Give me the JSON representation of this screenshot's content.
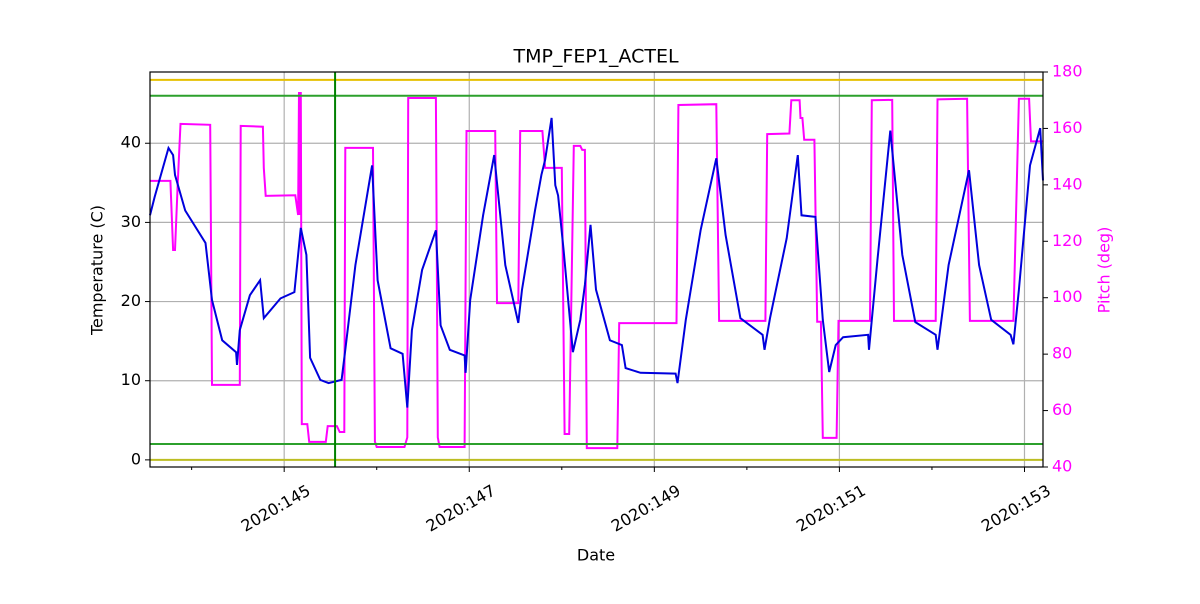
{
  "chart_data": {
    "type": "line",
    "title": "TMP_FEP1_ACTEL",
    "xlabel": "Date",
    "ylabel": "Temperature (C)",
    "y2label": "Pitch (deg)",
    "xlim": [
      143.55,
      153.2
    ],
    "ylim": [
      -0.9,
      49
    ],
    "y2lim": [
      40,
      180
    ],
    "xticks": [
      {
        "value": 145,
        "label": "2020:145"
      },
      {
        "value": 147,
        "label": "2020:147"
      },
      {
        "value": 149,
        "label": "2020:149"
      },
      {
        "value": 151,
        "label": "2020:151"
      },
      {
        "value": 153,
        "label": "2020:153"
      }
    ],
    "xminorticks": [
      144,
      146,
      148,
      150,
      152
    ],
    "yticks": [
      0,
      10,
      20,
      30,
      40
    ],
    "y2ticks": [
      40,
      60,
      80,
      100,
      120,
      140,
      160,
      180
    ],
    "y2color": "#ff00ff",
    "grid": true,
    "hlines": [
      {
        "value": 48,
        "color": "#e6c000"
      },
      {
        "value": 46,
        "color": "#2ca02c"
      },
      {
        "value": 2,
        "color": "#2ca02c"
      },
      {
        "value": 0,
        "color": "#bcbd22"
      }
    ],
    "vlines": [
      {
        "value": 145.55,
        "color": "#008000"
      }
    ],
    "series": [
      {
        "color": "#0000dd",
        "x": [
          143.55,
          143.6,
          143.75,
          143.8,
          143.82,
          143.93,
          144.15,
          144.22,
          144.33,
          144.48,
          144.49,
          144.52,
          144.63,
          144.74,
          144.78,
          144.96,
          145.11,
          145.18,
          145.24,
          145.28,
          145.39,
          145.48,
          145.62,
          145.66,
          145.77,
          145.95,
          146.01,
          146.15,
          146.28,
          146.33,
          146.38,
          146.49,
          146.64,
          146.69,
          146.79,
          146.95,
          146.96,
          147.01,
          147.15,
          147.27,
          147.39,
          147.53,
          147.57,
          147.71,
          147.78,
          147.82,
          147.89,
          147.93,
          147.96,
          148.02,
          148.12,
          148.2,
          148.25,
          148.31,
          148.37,
          148.52,
          148.65,
          148.69,
          148.85,
          149.23,
          149.25,
          149.34,
          149.5,
          149.67,
          149.77,
          149.93,
          150.17,
          150.19,
          150.25,
          150.43,
          150.55,
          150.59,
          150.74,
          150.82,
          150.89,
          150.96,
          151.04,
          151.31,
          151.32,
          151.41,
          151.55,
          151.68,
          151.82,
          152.04,
          152.06,
          152.18,
          152.4,
          152.51,
          152.64,
          152.85,
          152.88,
          152.94,
          153.06,
          153.17,
          153.2
        ],
        "values": [
          30.9,
          33.2,
          39.4,
          38.5,
          36,
          31.5,
          27.4,
          20.2,
          15.1,
          13.6,
          12,
          16.4,
          20.8,
          22.7,
          17.9,
          20.4,
          21.2,
          29.3,
          25.9,
          12.9,
          10.1,
          9.7,
          10.1,
          13.9,
          24.6,
          37.2,
          22.7,
          14.1,
          13.4,
          6.6,
          16.4,
          24,
          29,
          17,
          13.9,
          13.2,
          11,
          20.2,
          30.9,
          38.5,
          24.6,
          17.3,
          21.5,
          31.5,
          36,
          37.9,
          43.2,
          34.7,
          33.4,
          26.5,
          13.6,
          17.7,
          22.1,
          29.7,
          21.5,
          15.1,
          14.5,
          11.6,
          11,
          10.9,
          9.7,
          17.7,
          29,
          38.1,
          28.4,
          17.9,
          15.8,
          13.9,
          17.9,
          28,
          38.5,
          30.9,
          30.7,
          17.7,
          11.1,
          14.5,
          15.5,
          15.8,
          13.9,
          25.2,
          41.6,
          25.9,
          17.4,
          15.8,
          13.9,
          24.6,
          36.6,
          24.6,
          17.7,
          15.8,
          14.6,
          21.5,
          37.2,
          41.9,
          35.3
        ]
      },
      {
        "color": "#ff00ff",
        "axis": "y2",
        "x": [
          143.55,
          143.77,
          143.8,
          143.82,
          143.85,
          143.88,
          144.2,
          144.22,
          144.52,
          144.53,
          144.77,
          144.78,
          144.8,
          145.12,
          145.15,
          145.16,
          145.17,
          145.18,
          145.19,
          145.25,
          145.27,
          145.45,
          145.47,
          145.57,
          145.6,
          145.65,
          145.66,
          145.96,
          145.98,
          146.0,
          146.3,
          146.33,
          146.34,
          146.64,
          146.66,
          146.68,
          146.95,
          146.97,
          147.28,
          147.3,
          147.53,
          147.55,
          147.79,
          147.82,
          148.0,
          148.03,
          148.08,
          148.13,
          148.2,
          148.22,
          148.25,
          148.27,
          148.6,
          148.62,
          149.24,
          149.26,
          149.67,
          149.7,
          150.2,
          150.22,
          150.46,
          150.48,
          150.57,
          150.58,
          150.6,
          150.62,
          150.73,
          150.76,
          150.8,
          150.82,
          150.97,
          150.99,
          151.33,
          151.35,
          151.57,
          151.59,
          152.04,
          152.06,
          152.38,
          152.41,
          152.88,
          152.94,
          153.05,
          153.07,
          153.2
        ],
        "values": [
          141.4,
          141.4,
          116.9,
          116.9,
          141,
          161.6,
          161.3,
          69.1,
          69.1,
          160.9,
          160.6,
          146,
          136.1,
          136.3,
          129.3,
          172.9,
          129.3,
          172.9,
          55.2,
          55.2,
          48.9,
          48.9,
          54.5,
          54.5,
          52.4,
          52.4,
          153.1,
          153.1,
          49,
          47.1,
          47.1,
          50.5,
          170.8,
          170.8,
          50.5,
          47.1,
          47.1,
          159.1,
          159.1,
          98.1,
          98.1,
          159.1,
          159.1,
          146,
          146,
          51.7,
          51.7,
          153.8,
          153.8,
          152.4,
          152.4,
          46.7,
          46.7,
          91,
          91,
          168.3,
          168.6,
          91.8,
          91.8,
          158,
          158.2,
          170,
          170,
          163.7,
          163.7,
          156,
          156,
          91.5,
          91.5,
          50.3,
          50.3,
          91.8,
          91.8,
          170,
          170.1,
          91.8,
          91.8,
          170.3,
          170.5,
          91.8,
          91.8,
          170.5,
          170.5,
          155.4,
          155.4
        ]
      }
    ]
  }
}
